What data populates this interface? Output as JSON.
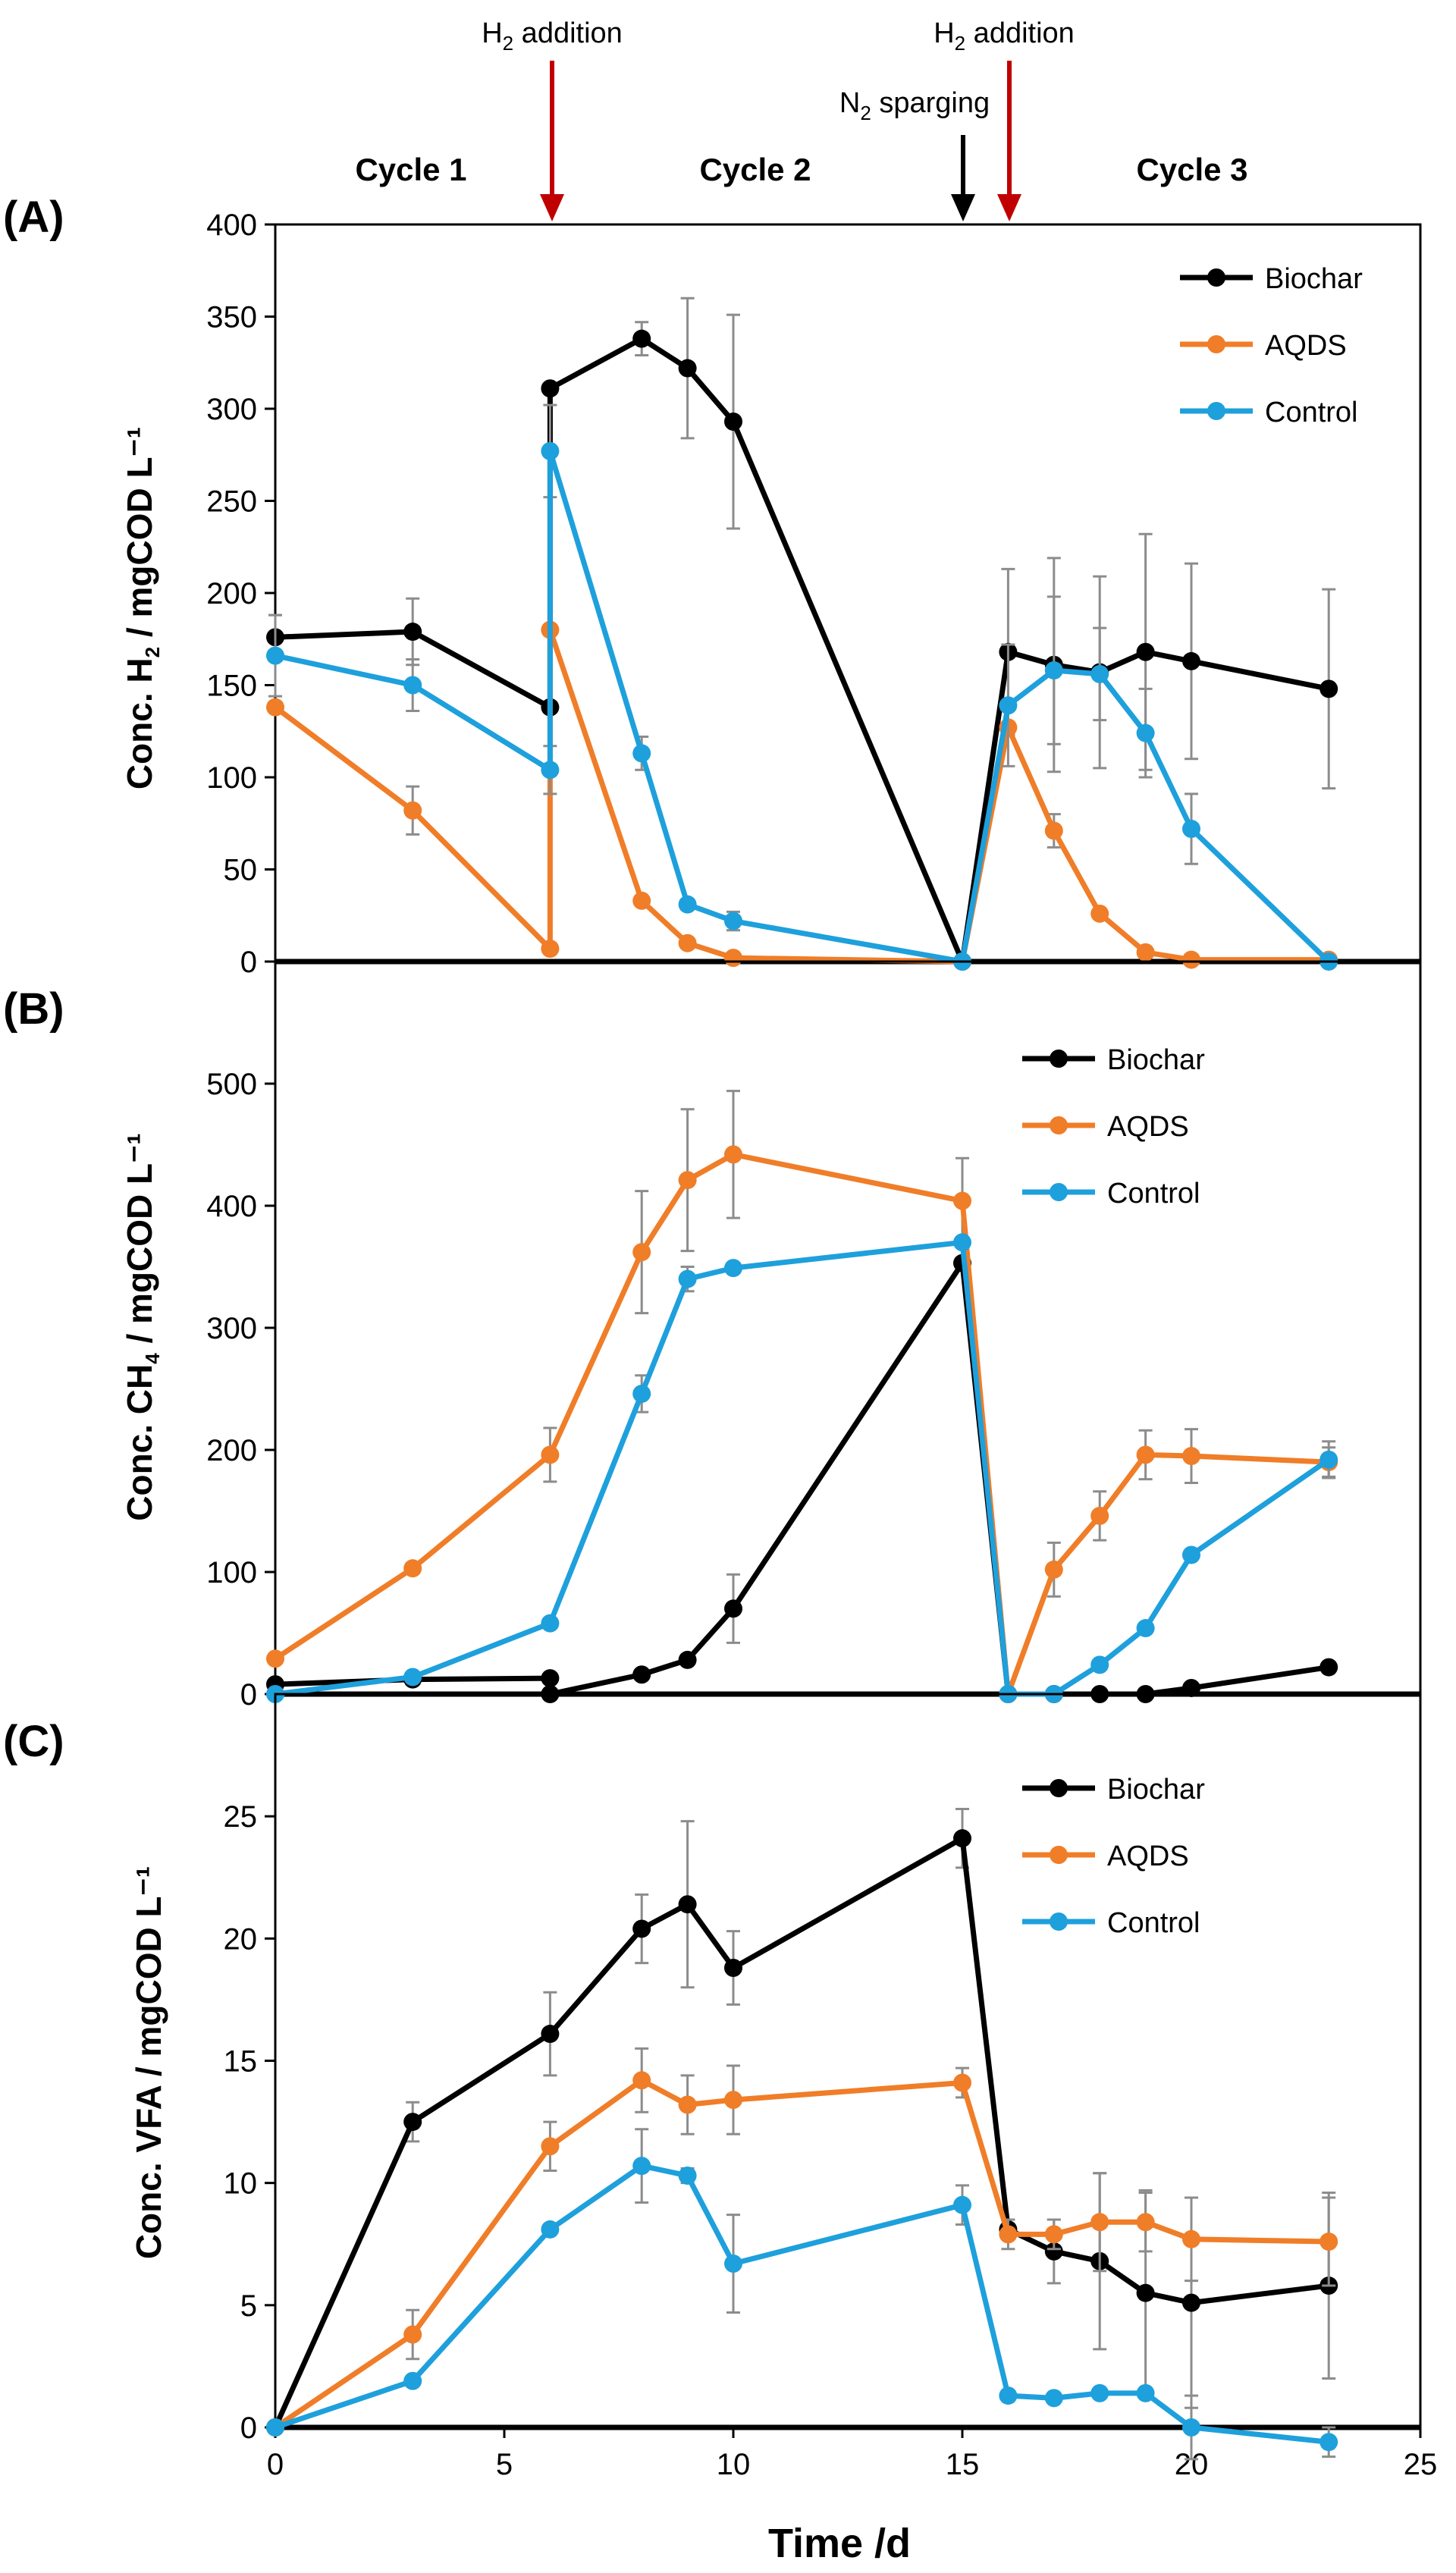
{
  "chart_data": [
    {
      "type": "line",
      "panel": "(A)",
      "ylabel": "Conc. H2 / mgCOD L⁻¹",
      "ylim": [
        0,
        400
      ],
      "yticks": [
        0,
        50,
        100,
        150,
        200,
        250,
        300,
        350,
        400
      ],
      "legend_position": "top-right",
      "series": [
        {
          "name": "Biochar",
          "color": "#000000",
          "points": [
            [
              0,
              176
            ],
            [
              3,
              179
            ],
            [
              6,
              138
            ],
            [
              6,
              311
            ],
            [
              8,
              338
            ],
            [
              9,
              322
            ],
            [
              10,
              293
            ],
            [
              15,
              0
            ],
            [
              16,
              168
            ],
            [
              17,
              161
            ],
            [
              18,
              157
            ],
            [
              19,
              168
            ],
            [
              20,
              163
            ],
            [
              23,
              148
            ]
          ],
          "errors": [
            12,
            18,
            0,
            0,
            9,
            38,
            58,
            0,
            45,
            58,
            52,
            64,
            53,
            54
          ]
        },
        {
          "name": "AQDS",
          "color": "#F07D28",
          "points": [
            [
              0,
              138
            ],
            [
              3,
              82
            ],
            [
              6,
              7
            ],
            [
              6,
              180
            ],
            [
              8,
              33
            ],
            [
              9,
              10
            ],
            [
              10,
              2
            ],
            [
              15,
              0
            ],
            [
              16,
              127
            ],
            [
              17,
              71
            ],
            [
              18,
              26
            ],
            [
              19,
              5
            ],
            [
              20,
              1
            ],
            [
              23,
              1
            ]
          ],
          "errors": [
            0,
            13,
            0,
            0,
            0,
            0,
            0,
            0,
            0,
            9,
            0,
            0,
            0,
            0
          ]
        },
        {
          "name": "Control",
          "color": "#1EA0DC",
          "points": [
            [
              0,
              166
            ],
            [
              3,
              150
            ],
            [
              6,
              104
            ],
            [
              6,
              277
            ],
            [
              8,
              113
            ],
            [
              9,
              31
            ],
            [
              10,
              22
            ],
            [
              15,
              0
            ],
            [
              16,
              139
            ],
            [
              17,
              158
            ],
            [
              18,
              156
            ],
            [
              19,
              124
            ],
            [
              20,
              72
            ],
            [
              23,
              0
            ]
          ],
          "errors": [
            22,
            14,
            13,
            25,
            9,
            0,
            5,
            0,
            33,
            40,
            25,
            24,
            19,
            0
          ]
        }
      ]
    },
    {
      "type": "line",
      "panel": "(B)",
      "ylabel": "Conc. CH4 / mgCOD L⁻¹",
      "ylim": [
        0,
        600
      ],
      "yticks": [
        0,
        100,
        200,
        300,
        400,
        500
      ],
      "legend_position": "top-right",
      "series": [
        {
          "name": "Biochar",
          "color": "#000000",
          "points": [
            [
              0,
              8
            ],
            [
              3,
              12
            ],
            [
              6,
              13
            ],
            [
              6,
              0
            ],
            [
              8,
              16
            ],
            [
              9,
              28
            ],
            [
              10,
              70
            ],
            [
              15,
              353
            ],
            [
              16,
              0
            ],
            [
              17,
              0
            ],
            [
              18,
              0
            ],
            [
              19,
              0
            ],
            [
              20,
              5
            ],
            [
              23,
              22
            ]
          ],
          "errors": [
            0,
            0,
            0,
            0,
            0,
            0,
            28,
            0,
            0,
            0,
            0,
            0,
            0,
            0
          ]
        },
        {
          "name": "AQDS",
          "color": "#F07D28",
          "points": [
            [
              0,
              29
            ],
            [
              3,
              103
            ],
            [
              6,
              196
            ],
            [
              8,
              362
            ],
            [
              9,
              421
            ],
            [
              10,
              442
            ],
            [
              15,
              404
            ],
            [
              16,
              0
            ],
            [
              17,
              102
            ],
            [
              18,
              146
            ],
            [
              19,
              196
            ],
            [
              20,
              195
            ],
            [
              23,
              190
            ]
          ],
          "errors": [
            0,
            0,
            22,
            50,
            58,
            52,
            35,
            0,
            22,
            20,
            20,
            22,
            12
          ]
        },
        {
          "name": "Control",
          "color": "#1EA0DC",
          "points": [
            [
              0,
              0
            ],
            [
              3,
              14
            ],
            [
              6,
              58
            ],
            [
              8,
              246
            ],
            [
              9,
              340
            ],
            [
              10,
              349
            ],
            [
              15,
              370
            ],
            [
              16,
              0
            ],
            [
              17,
              0
            ],
            [
              18,
              24
            ],
            [
              19,
              54
            ],
            [
              20,
              114
            ],
            [
              23,
              192
            ]
          ],
          "errors": [
            0,
            0,
            0,
            15,
            10,
            0,
            0,
            0,
            0,
            0,
            0,
            0,
            15
          ]
        }
      ]
    },
    {
      "type": "line",
      "panel": "(C)",
      "ylabel": "Conc. VFA / mgCOD L⁻¹",
      "ylim": [
        0,
        30
      ],
      "yticks": [
        0,
        5,
        10,
        15,
        20,
        25
      ],
      "xlabel": "Time /d",
      "xlim": [
        0,
        25
      ],
      "xticks": [
        0,
        5,
        10,
        15,
        20,
        25
      ],
      "legend_position": "top-right",
      "series": [
        {
          "name": "Biochar",
          "color": "#000000",
          "points": [
            [
              0,
              0
            ],
            [
              3,
              12.5
            ],
            [
              6,
              16.1
            ],
            [
              8,
              20.4
            ],
            [
              9,
              21.4
            ],
            [
              10,
              18.8
            ],
            [
              15,
              24.1
            ],
            [
              16,
              8.1
            ],
            [
              17,
              7.2
            ],
            [
              18,
              6.8
            ],
            [
              19,
              5.5
            ],
            [
              20,
              5.1
            ],
            [
              23,
              5.8
            ]
          ],
          "errors": [
            0,
            0.8,
            1.7,
            1.4,
            3.4,
            1.5,
            1.2,
            0,
            1.3,
            3.6,
            4.2,
            4.3,
            3.8
          ]
        },
        {
          "name": "AQDS",
          "color": "#F07D28",
          "points": [
            [
              0,
              0
            ],
            [
              3,
              3.8
            ],
            [
              6,
              11.5
            ],
            [
              8,
              14.2
            ],
            [
              9,
              13.2
            ],
            [
              10,
              13.4
            ],
            [
              15,
              14.1
            ],
            [
              16,
              7.9
            ],
            [
              17,
              7.9
            ],
            [
              18,
              8.4
            ],
            [
              19,
              8.4
            ],
            [
              20,
              7.7
            ],
            [
              23,
              7.6
            ]
          ],
          "errors": [
            0,
            1.0,
            1.0,
            1.3,
            1.2,
            1.4,
            0.6,
            0.6,
            0.6,
            2.0,
            1.2,
            1.7,
            1.8
          ]
        },
        {
          "name": "Control",
          "color": "#1EA0DC",
          "points": [
            [
              0,
              0
            ],
            [
              3,
              1.9
            ],
            [
              6,
              8.1
            ],
            [
              8,
              10.7
            ],
            [
              9,
              10.3
            ],
            [
              10,
              6.7
            ],
            [
              15,
              9.1
            ],
            [
              16,
              1.3
            ],
            [
              17,
              1.2
            ],
            [
              18,
              1.4
            ],
            [
              19,
              1.4
            ],
            [
              20,
              0
            ],
            [
              23,
              -0.6
            ]
          ],
          "errors": [
            0,
            0,
            0,
            1.5,
            0.3,
            2.0,
            0.8,
            0,
            0,
            0,
            0,
            1.3,
            0.6
          ]
        }
      ]
    }
  ],
  "annotations": {
    "h2_addition_1": {
      "label": "H2 addition",
      "x": 6,
      "color": "#C00000"
    },
    "h2_addition_2": {
      "label": "H2 addition",
      "x": 16,
      "color": "#C00000"
    },
    "n2_sparging": {
      "label": "N2 sparging",
      "x": 15,
      "color": "#000000"
    },
    "cycles": [
      {
        "label": "Cycle 1",
        "x": 3
      },
      {
        "label": "Cycle 2",
        "x": 10.5
      },
      {
        "label": "Cycle 3",
        "x": 19.8
      }
    ]
  },
  "text": {
    "panel_a": "(A)",
    "panel_b": "(B)",
    "panel_c": "(C)",
    "ylabel_a_pre": "Conc. H",
    "ylabel_a_sub": "2",
    "ylabel_a_post": " / mgCOD L⁻¹",
    "ylabel_b_pre": "Conc. CH",
    "ylabel_b_sub": "4",
    "ylabel_b_post": " / mgCOD L⁻¹",
    "ylabel_c": "Conc. VFA / mgCOD L⁻¹",
    "xlabel": "Time /d",
    "h2_pre": "H",
    "h2_sub": "2",
    "h2_post": " addition",
    "n2_pre": "N",
    "n2_sub": "2",
    "n2_post": " sparging",
    "cycle1": "Cycle 1",
    "cycle2": "Cycle 2",
    "cycle3": "Cycle 3"
  }
}
